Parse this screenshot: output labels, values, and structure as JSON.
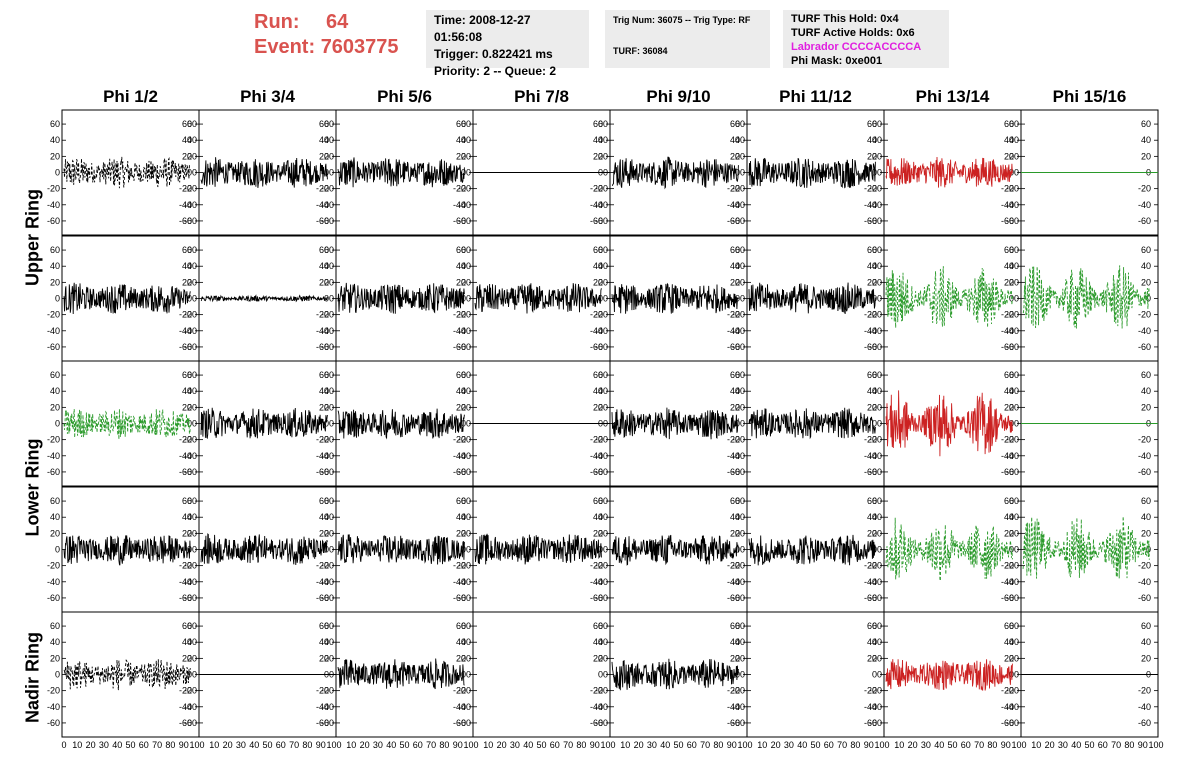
{
  "header": {
    "run_label": "Run:",
    "run_value": "64",
    "event_label": "Event:",
    "event_value": "7603775",
    "time": "Time: 2008-12-27 01:56:08",
    "trigger": "Trigger: 0.822421 ms",
    "priority": "Priority: 2 -- Queue: 2",
    "trig_num": "Trig Num: 36075 -- Trig Type: RF",
    "turf": "TURF: 36084",
    "turf_hold": "TURF This Hold: 0x4",
    "turf_active": "TURF Active Holds: 0x6",
    "labrador": "Labrador CCCCACCCCA",
    "phi_mask": "Phi Mask: 0xe001",
    "colors": {
      "run": "#d9534f",
      "labrador": "#e020e0",
      "panel": "#ececec"
    }
  },
  "columns": [
    "Phi 1/2",
    "Phi 3/4",
    "Phi 5/6",
    "Phi 7/8",
    "Phi 9/10",
    "Phi 11/12",
    "Phi 13/14",
    "Phi 15/16"
  ],
  "rings": [
    "Upper Ring",
    "Lower Ring",
    "Nadir Ring"
  ],
  "chart_data": {
    "type": "line",
    "description_grid": "5 rows x 8 columns of waveform panels",
    "xlim": [
      0,
      100
    ],
    "ylim": [
      -70,
      70
    ],
    "x_ticks": [
      "0",
      "10",
      "20",
      "30",
      "40",
      "50",
      "60",
      "70",
      "80",
      "90",
      "100"
    ],
    "y_ticks": [
      "60",
      "40",
      "20",
      "0",
      "-20",
      "-40",
      "-60"
    ],
    "grid": false,
    "colors": {
      "black": "#000000",
      "red": "#cc2222",
      "green": "#2a9a2a"
    },
    "panels": [
      [
        "dash-black",
        "black",
        "black",
        "flat-black",
        "black",
        "black",
        "red",
        "flat-green"
      ],
      [
        "black",
        "black-low",
        "black",
        "black",
        "black",
        "black",
        "dash-green-big",
        "dash-green-big"
      ],
      [
        "dash-green",
        "black",
        "black",
        "flat-black",
        "black",
        "black",
        "red-big",
        "flat-green"
      ],
      [
        "black",
        "black",
        "black",
        "black",
        "black",
        "black",
        "dash-green-big",
        "dash-green-big"
      ],
      [
        "dash-black",
        "flat-black",
        "black",
        "empty",
        "black",
        "empty",
        "red",
        "flat-black"
      ]
    ]
  }
}
